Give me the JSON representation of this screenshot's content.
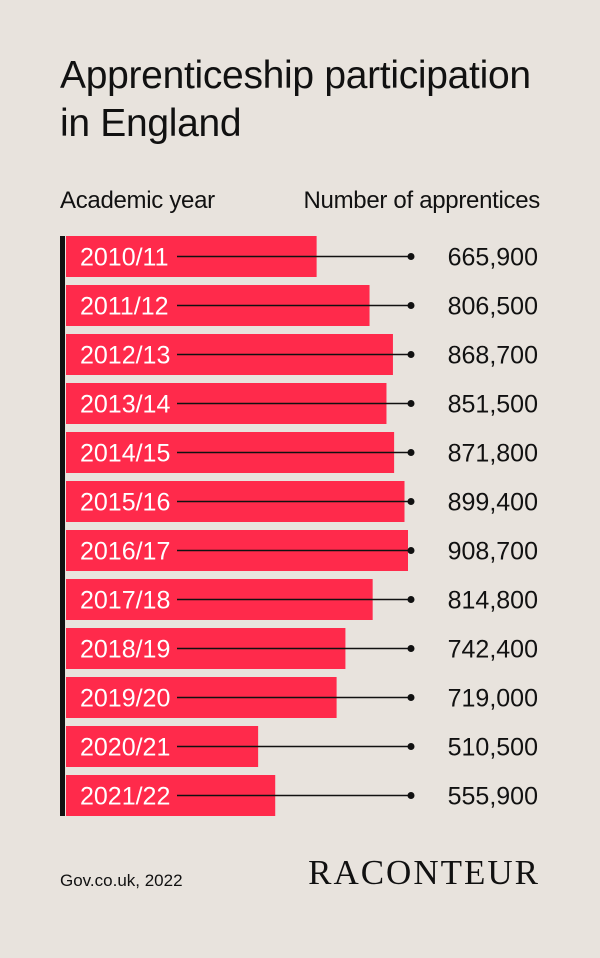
{
  "title": "Apprenticeship participation in England",
  "headers": {
    "category": "Academic year",
    "value": "Number of apprentices"
  },
  "source": "Gov.co.uk, 2022",
  "brand": "RACONTEUR",
  "colors": {
    "background": "#e8e3dd",
    "bar": "#ff2a4b",
    "text": "#111111"
  },
  "chart_data": {
    "type": "bar",
    "orientation": "horizontal",
    "title": "Apprenticeship participation in England",
    "xlabel": "Number of apprentices",
    "ylabel": "Academic year",
    "categories": [
      "2010/11",
      "2011/12",
      "2012/13",
      "2013/14",
      "2014/15",
      "2015/16",
      "2016/17",
      "2017/18",
      "2018/19",
      "2019/20",
      "2020/21",
      "2021/22"
    ],
    "values": [
      665900,
      806500,
      868700,
      851500,
      871800,
      899400,
      908700,
      814800,
      742400,
      719000,
      510500,
      555900
    ],
    "value_labels": [
      "665,900",
      "806,500",
      "868,700",
      "851,500",
      "871,800",
      "899,400",
      "908,700",
      "814,800",
      "742,400",
      "719,000",
      "510,500",
      "555,900"
    ],
    "grid": false,
    "legend": "none"
  }
}
